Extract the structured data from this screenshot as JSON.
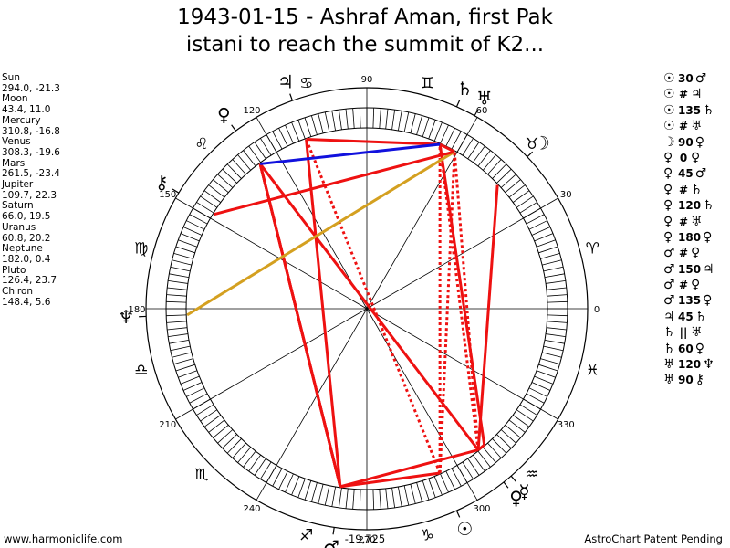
{
  "title": {
    "line1": "1943-01-15 - Ashraf Aman, first Pak",
    "line2": "istani to reach the summit of K2..."
  },
  "positions": [
    {
      "name": "Sun",
      "lon": 294.0,
      "lat": -21.3,
      "coords": "294.0, -21.3",
      "glyph": "☉"
    },
    {
      "name": "Moon",
      "lon": 43.4,
      "lat": 11.0,
      "coords": "43.4, 11.0",
      "glyph": "☽"
    },
    {
      "name": "Mercury",
      "lon": 310.8,
      "lat": -16.8,
      "coords": "310.8, -16.8",
      "glyph": "☿"
    },
    {
      "name": "Venus",
      "lon": 308.3,
      "lat": -19.6,
      "coords": "308.3, -19.6",
      "glyph": "♀"
    },
    {
      "name": "Mars",
      "lon": 261.5,
      "lat": -23.4,
      "coords": "261.5, -23.4",
      "glyph": "♂"
    },
    {
      "name": "Jupiter",
      "lon": 109.7,
      "lat": 22.3,
      "coords": "109.7, 22.3",
      "glyph": "♃"
    },
    {
      "name": "Saturn",
      "lon": 66.0,
      "lat": 19.5,
      "coords": "66.0, 19.5",
      "glyph": "♄"
    },
    {
      "name": "Uranus",
      "lon": 60.8,
      "lat": 20.2,
      "coords": "60.8, 20.2",
      "glyph": "♅"
    },
    {
      "name": "Neptune",
      "lon": 182.0,
      "lat": 0.4,
      "coords": "182.0, 0.4",
      "glyph": "♆"
    },
    {
      "name": "Pluto",
      "lon": 126.4,
      "lat": 23.7,
      "coords": "126.4, 23.7",
      "glyph": "♀"
    },
    {
      "name": "Chiron",
      "lon": 148.4,
      "lat": 5.6,
      "coords": "148.4, 5.6",
      "glyph": "⚷"
    }
  ],
  "wheel": {
    "degree_labels": [
      "0",
      "30",
      "60",
      "90",
      "120",
      "150",
      "180",
      "210",
      "240",
      "270",
      "300",
      "330"
    ],
    "zodiac": [
      {
        "sign": "Aries",
        "glyph": "♈"
      },
      {
        "sign": "Taurus",
        "glyph": "♉"
      },
      {
        "sign": "Gemini",
        "glyph": "♊"
      },
      {
        "sign": "Cancer",
        "glyph": "♋"
      },
      {
        "sign": "Leo",
        "glyph": "♌"
      },
      {
        "sign": "Virgo",
        "glyph": "♍"
      },
      {
        "sign": "Libra",
        "glyph": "♎"
      },
      {
        "sign": "Scorpio",
        "glyph": "♏"
      },
      {
        "sign": "Sagittarius",
        "glyph": "♐"
      },
      {
        "sign": "Capricorn",
        "glyph": "♑"
      },
      {
        "sign": "Aquarius",
        "glyph": "♒"
      },
      {
        "sign": "Pisces",
        "glyph": "♓"
      }
    ],
    "angle_readout": "-19,725",
    "colors": {
      "red": "#ee1111",
      "blue": "#1111dd",
      "orange": "#d4a020",
      "ring": "#000000"
    }
  },
  "aspects": [
    {
      "p1": "☉",
      "symbol": "30",
      "p2": "♂",
      "from": 294.0,
      "to": 261.5,
      "color": "#ee1111",
      "style": "solid"
    },
    {
      "p1": "☉",
      "symbol": "#",
      "p2": "♃",
      "from": 294.0,
      "to": 109.7,
      "color": "#ee1111",
      "style": "dotted"
    },
    {
      "p1": "☉",
      "symbol": "135",
      "p2": "♄",
      "from": 294.0,
      "to": 66.0,
      "color": "#ee1111",
      "style": "dotted"
    },
    {
      "p1": "☉",
      "symbol": "#",
      "p2": "♅",
      "from": 294.0,
      "to": 60.8,
      "color": "#ee1111",
      "style": "dotted"
    },
    {
      "p1": "☽",
      "symbol": "90",
      "p2": "♀",
      "from": 43.4,
      "to": 308.3,
      "color": "#ee1111",
      "style": "solid"
    },
    {
      "p1": "♀",
      "symbol": "0",
      "p2": "♀",
      "from": 310.8,
      "to": 308.3,
      "color": "#ee1111",
      "style": "solid"
    },
    {
      "p1": "♀",
      "symbol": "45",
      "p2": "♂",
      "from": 308.3,
      "to": 261.5,
      "color": "#ee1111",
      "style": "solid"
    },
    {
      "p1": "♀",
      "symbol": "#",
      "p2": "♄",
      "from": 308.3,
      "to": 66.0,
      "color": "#ee1111",
      "style": "dotted"
    },
    {
      "p1": "♀",
      "symbol": "120",
      "p2": "♄",
      "from": 310.8,
      "to": 66.0,
      "color": "#ee1111",
      "style": "solid"
    },
    {
      "p1": "♀",
      "symbol": "#",
      "p2": "♅",
      "from": 308.3,
      "to": 60.8,
      "color": "#ee1111",
      "style": "dotted"
    },
    {
      "p1": "♀",
      "symbol": "180",
      "p2": "♀",
      "from": 308.3,
      "to": 126.4,
      "color": "#ee1111",
      "style": "solid"
    },
    {
      "p1": "♂",
      "symbol": "#",
      "p2": "♀",
      "from": 261.5,
      "to": 126.4,
      "color": "#ee1111",
      "style": "solid"
    },
    {
      "p1": "♂",
      "symbol": "150",
      "p2": "♃",
      "from": 261.5,
      "to": 109.7,
      "color": "#ee1111",
      "style": "solid"
    },
    {
      "p1": "♂",
      "symbol": "#",
      "p2": "♀",
      "from": 261.5,
      "to": 126.4,
      "color": "#ee1111",
      "style": "solid"
    },
    {
      "p1": "♂",
      "symbol": "135",
      "p2": "♀",
      "from": 261.5,
      "to": 126.4,
      "color": "#ee1111",
      "style": "solid"
    },
    {
      "p1": "♃",
      "symbol": "45",
      "p2": "♄",
      "from": 109.7,
      "to": 66.0,
      "color": "#ee1111",
      "style": "solid"
    },
    {
      "p1": "♄",
      "symbol": "||",
      "p2": "♅",
      "from": 66.0,
      "to": 60.8,
      "color": "#ee1111",
      "style": "solid"
    },
    {
      "p1": "♄",
      "symbol": "60",
      "p2": "♀",
      "from": 66.0,
      "to": 126.4,
      "color": "#1111dd",
      "style": "solid"
    },
    {
      "p1": "♅",
      "symbol": "120",
      "p2": "♆",
      "from": 60.8,
      "to": 182.0,
      "color": "#d4a020",
      "style": "solid"
    },
    {
      "p1": "♅",
      "symbol": "90",
      "p2": "⚷",
      "from": 60.8,
      "to": 148.4,
      "color": "#ee1111",
      "style": "solid"
    }
  ],
  "footer": {
    "left": "www.harmoniclife.com",
    "right": "AstroChart Patent Pending"
  }
}
